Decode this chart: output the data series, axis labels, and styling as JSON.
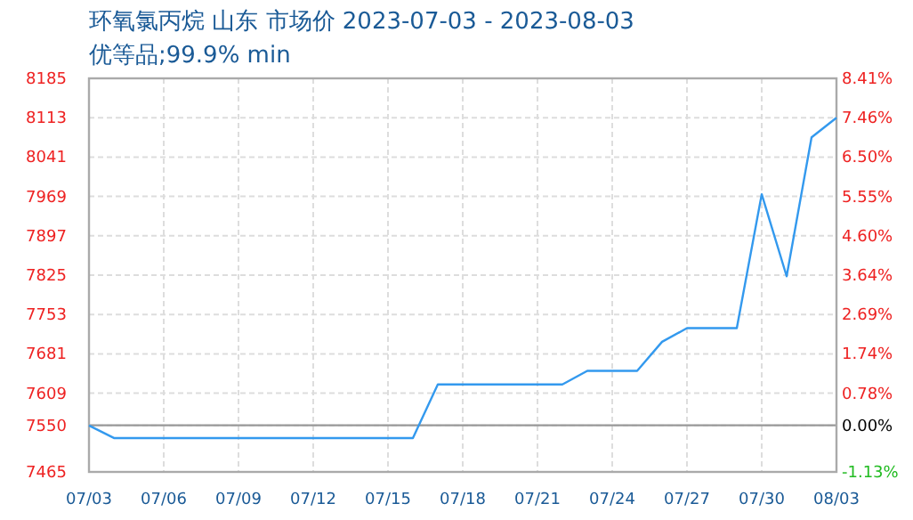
{
  "chart_data": {
    "type": "line",
    "title": "环氧氯丙烷 山东 市场价 2023-07-03 - 2023-08-03",
    "subtitle": "优等品;99.9% min",
    "categories": [
      "07/03",
      null,
      null,
      "07/06",
      null,
      null,
      "07/09",
      null,
      null,
      "07/12",
      null,
      null,
      "07/15",
      null,
      null,
      "07/18",
      null,
      null,
      "07/21",
      null,
      null,
      "07/24",
      null,
      null,
      "07/27",
      null,
      null,
      "07/30",
      null,
      null,
      "08/03"
    ],
    "series": [
      {
        "color": "#3399ee",
        "values": [
          7550,
          7527,
          7527,
          7527,
          7527,
          7527,
          7527,
          7527,
          7527,
          7527,
          7527,
          7527,
          7527,
          7527,
          7625,
          7625,
          7625,
          7625,
          7625,
          7625,
          7650,
          7650,
          7650,
          7703,
          7728,
          7728,
          7728,
          7973,
          7823,
          8077,
          8113
        ]
      }
    ],
    "ylim": [
      7465,
      8185
    ],
    "yticks": [
      7465,
      7550,
      7609,
      7681,
      7753,
      7825,
      7897,
      7969,
      8041,
      8113,
      8185
    ],
    "y2lim": [
      -1.13,
      8.41
    ],
    "y2ticks": [
      {
        "value": -1.13,
        "label": "-1.13%"
      },
      {
        "value": 0,
        "label": "0.00%"
      },
      {
        "value": 0.78,
        "label": "0.78%"
      },
      {
        "value": 1.74,
        "label": "1.74%"
      },
      {
        "value": 2.69,
        "label": "2.69%"
      },
      {
        "value": 3.64,
        "label": "3.64%"
      },
      {
        "value": 4.6,
        "label": "4.60%"
      },
      {
        "value": 5.55,
        "label": "5.55%"
      },
      {
        "value": 6.5,
        "label": "6.50%"
      },
      {
        "value": 7.46,
        "label": "7.46%"
      },
      {
        "value": 8.41,
        "label": "8.41%"
      }
    ],
    "ref_lines": [
      {
        "axis": "y2",
        "value": 0,
        "color": "#999999"
      }
    ],
    "grid": true,
    "marker": "none",
    "line_style": "solid"
  }
}
